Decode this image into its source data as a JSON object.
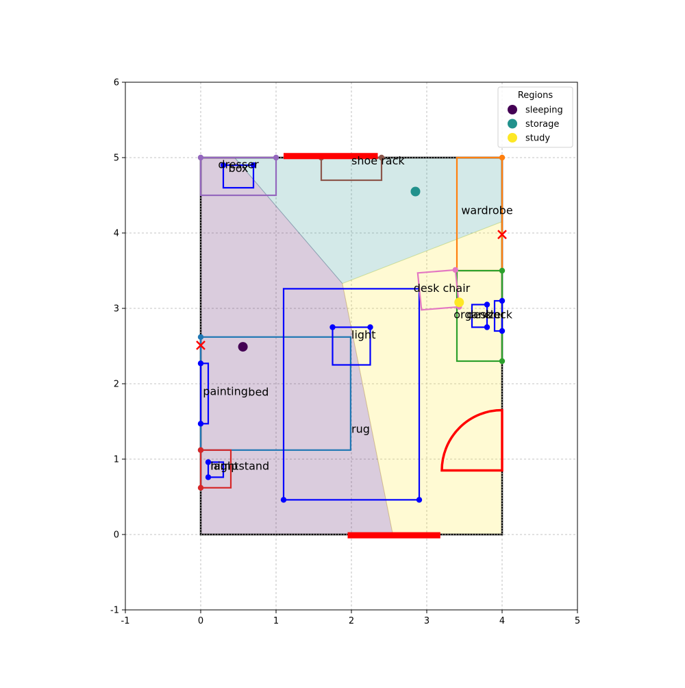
{
  "chart_data": {
    "type": "scatter",
    "xlim": [
      -1,
      5
    ],
    "ylim": [
      -1,
      6
    ],
    "xticks": [
      -1,
      0,
      1,
      2,
      3,
      4,
      5
    ],
    "yticks": [
      -1,
      0,
      1,
      2,
      3,
      4,
      5,
      6
    ],
    "grid": true,
    "legend": {
      "title": "Regions",
      "placement": "top-right",
      "entries": [
        {
          "label": "sleeping",
          "color": "#440154"
        },
        {
          "label": "storage",
          "color": "#21918c"
        },
        {
          "label": "study",
          "color": "#fde725"
        }
      ]
    },
    "room": {
      "x0": 0,
      "y0": 0,
      "x1": 4,
      "y1": 5
    },
    "regions": [
      {
        "name": "sleeping",
        "color": "#440154",
        "centroid": [
          0.56,
          2.49
        ],
        "polygon": [
          [
            0,
            0
          ],
          [
            2.55,
            0
          ],
          [
            1.88,
            3.33
          ],
          [
            0.45,
            5
          ],
          [
            0,
            5
          ]
        ]
      },
      {
        "name": "storage",
        "color": "#21918c",
        "centroid": [
          2.85,
          4.55
        ],
        "polygon": [
          [
            0.45,
            5
          ],
          [
            4,
            5
          ],
          [
            4,
            4.15
          ],
          [
            1.88,
            3.33
          ]
        ]
      },
      {
        "name": "study",
        "color": "#fde725",
        "centroid": [
          3.43,
          3.08
        ],
        "polygon": [
          [
            2.55,
            0
          ],
          [
            4,
            0
          ],
          [
            4,
            4.15
          ],
          [
            1.88,
            3.33
          ]
        ]
      }
    ],
    "windows": [
      {
        "x0": 1.1,
        "y0": 5.02,
        "x1": 2.35,
        "y1": 5.02
      },
      {
        "x0": 1.95,
        "y0": -0.01,
        "x1": 3.18,
        "y1": -0.01
      }
    ],
    "door": {
      "hinge": [
        4,
        0.85
      ],
      "radius": 0.8
    },
    "markers_x": [
      [
        0,
        2.51
      ],
      [
        4,
        3.98
      ]
    ],
    "furniture": [
      {
        "label": "bed",
        "color": "#1f77b4",
        "x0": 0,
        "y0": 1.12,
        "x1": 1.99,
        "y1": 2.62,
        "label_pos": [
          0.63,
          1.84
        ],
        "dots": [
          [
            0,
            2.62
          ],
          [
            0,
            1.12
          ]
        ]
      },
      {
        "label": "rug",
        "color": "#0000ff",
        "x0": 1.1,
        "y0": 0.46,
        "x1": 2.9,
        "y1": 3.26,
        "label_pos": [
          2.0,
          1.35
        ],
        "dots": [
          [
            1.1,
            0.46
          ],
          [
            2.9,
            0.46
          ]
        ]
      },
      {
        "label": "light",
        "color": "#0000ff",
        "x0": 1.75,
        "y0": 2.25,
        "x1": 2.25,
        "y1": 2.75,
        "label_pos": [
          2.0,
          2.6
        ],
        "dots": [
          [
            1.75,
            2.75
          ],
          [
            2.25,
            2.75
          ]
        ]
      },
      {
        "label": "painting",
        "color": "#0000ff",
        "x0": 0,
        "y0": 1.47,
        "x1": 0.1,
        "y1": 2.27,
        "label_pos": [
          0.03,
          1.85
        ],
        "dots": [
          [
            0,
            2.27
          ],
          [
            0,
            1.47
          ]
        ]
      },
      {
        "label": "nightstand",
        "color": "#d62728",
        "x0": 0,
        "y0": 0.62,
        "x1": 0.4,
        "y1": 1.12,
        "label_pos": [
          0.13,
          0.86
        ],
        "dots": [
          [
            0,
            1.12
          ],
          [
            0,
            0.62
          ]
        ]
      },
      {
        "label": "lamp",
        "color": "#0000ff",
        "x0": 0.1,
        "y0": 0.76,
        "x1": 0.3,
        "y1": 0.96,
        "label_pos": [
          0.13,
          0.86
        ],
        "dots": [
          [
            0.1,
            0.96
          ],
          [
            0.1,
            0.76
          ]
        ]
      },
      {
        "label": "dresser",
        "color": "#9467bd",
        "x0": 0,
        "y0": 4.5,
        "x1": 1,
        "y1": 5,
        "label_pos": [
          0.5,
          4.86
        ],
        "dots": [
          [
            0,
            5
          ],
          [
            1,
            5
          ]
        ]
      },
      {
        "label": "box",
        "color": "#0000ff",
        "x0": 0.3,
        "y0": 4.6,
        "x1": 0.7,
        "y1": 4.9,
        "label_pos": [
          0.5,
          4.81
        ],
        "dots": [
          [
            0.3,
            4.9
          ],
          [
            0.7,
            4.9
          ]
        ]
      },
      {
        "label": "shoe rack",
        "color": "#8c564b",
        "x0": 1.6,
        "y0": 4.7,
        "x1": 2.4,
        "y1": 5,
        "label_pos": [
          2.0,
          4.91
        ],
        "dots": [
          [
            1.6,
            5
          ],
          [
            2.4,
            5
          ]
        ]
      },
      {
        "label": "wardrobe",
        "color": "#ff7f0e",
        "x0": 3.4,
        "y0": 3.5,
        "x1": 4,
        "y1": 5,
        "label_pos": [
          3.8,
          4.25
        ],
        "dots": [
          [
            4,
            5
          ]
        ]
      },
      {
        "label": "desk",
        "color": "#2ca02c",
        "x0": 3.4,
        "y0": 2.3,
        "x1": 4,
        "y1": 3.5,
        "label_pos": [
          3.7,
          2.87
        ],
        "dots": [
          [
            4,
            3.5
          ],
          [
            4,
            2.3
          ]
        ]
      },
      {
        "label": "organizer",
        "color": "#0000ff",
        "x0": 3.6,
        "y0": 2.75,
        "x1": 3.8,
        "y1": 3.05,
        "label_pos": [
          3.7,
          2.87
        ],
        "dots": [
          [
            3.8,
            3.05
          ],
          [
            3.8,
            2.75
          ]
        ]
      },
      {
        "label": "clock",
        "color": "#0000ff",
        "x0": 3.9,
        "y0": 2.7,
        "x1": 4,
        "y1": 3.1,
        "label_pos": [
          3.95,
          2.87
        ],
        "dots": [
          [
            4,
            3.1
          ],
          [
            4,
            2.7
          ]
        ]
      }
    ],
    "desk_chair": {
      "label": "desk chair",
      "color": "#e377c2",
      "polygon": [
        [
          2.88,
          3.47
        ],
        [
          3.38,
          3.51
        ],
        [
          3.43,
          3.02
        ],
        [
          2.93,
          2.98
        ]
      ],
      "label_pos": [
        3.2,
        3.22
      ],
      "dots": [
        [
          3.38,
          3.51
        ],
        [
          3.43,
          3.02
        ]
      ]
    }
  }
}
